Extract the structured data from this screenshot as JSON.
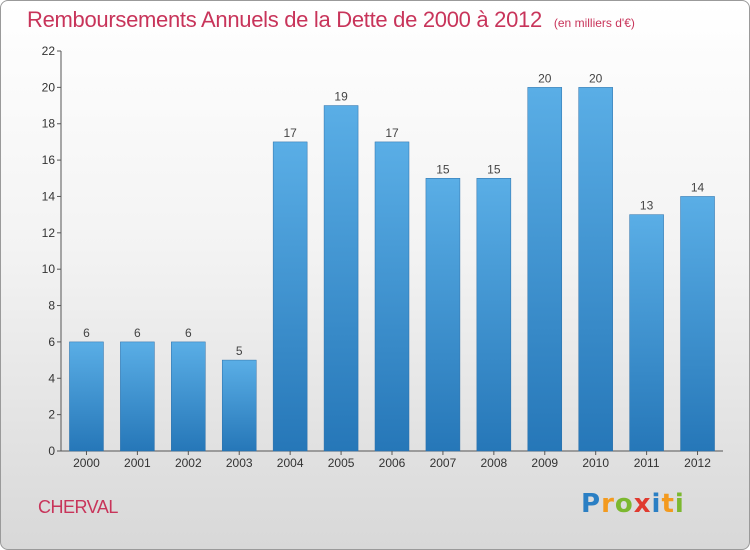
{
  "chart_data": {
    "type": "bar",
    "title": "Remboursements Annuels de la Dette de 2000 à 2012",
    "subtitle": "(en milliers d'€)",
    "categories": [
      "2000",
      "2001",
      "2002",
      "2003",
      "2004",
      "2005",
      "2006",
      "2007",
      "2008",
      "2009",
      "2010",
      "2011",
      "2012"
    ],
    "values": [
      6,
      6,
      6,
      5,
      17,
      19,
      17,
      15,
      15,
      20,
      20,
      13,
      14
    ],
    "ylim": [
      0,
      22
    ],
    "yticks": [
      0,
      2,
      4,
      6,
      8,
      10,
      12,
      14,
      16,
      18,
      20,
      22
    ],
    "grid": false,
    "bar_color_top": "#5aaee6",
    "bar_color_bottom": "#2677b8",
    "data_labels": true
  },
  "footer": {
    "commune": "CHERVAL",
    "logo_letters": [
      {
        "ch": "P",
        "color": "#2a7fc4"
      },
      {
        "ch": "r",
        "color": "#f39a1e"
      },
      {
        "ch": "o",
        "color": "#7cb82f"
      },
      {
        "ch": "x",
        "color": "#e03a2f"
      },
      {
        "ch": "i",
        "color": "#2a7fc4"
      },
      {
        "ch": "t",
        "color": "#f39a1e"
      },
      {
        "ch": "i",
        "color": "#7cb82f"
      }
    ]
  }
}
